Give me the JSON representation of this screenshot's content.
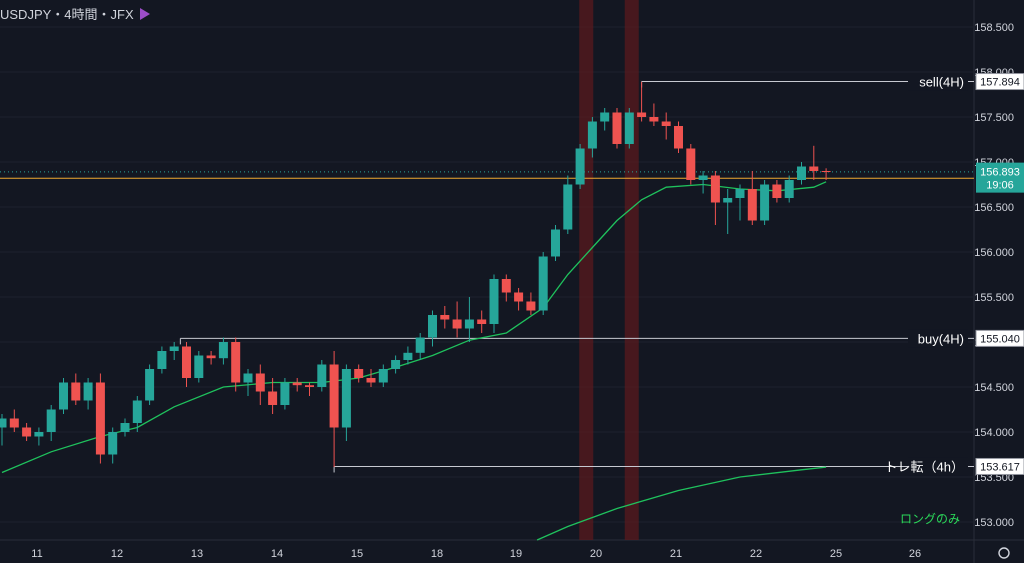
{
  "header": {
    "symbol": "USDJPY・4時間・JFX"
  },
  "colors": {
    "background": "#131722",
    "up": "#26a69a",
    "down": "#ef5350",
    "ma": "#1fc25d",
    "price_line": "#f0a830",
    "grid": "#1e222d",
    "text": "#d1d4dc",
    "label_green": "#2bd95a",
    "highlight": "#5a1a1e"
  },
  "chart_data": {
    "type": "candlestick",
    "ylim": [
      152.8,
      158.8
    ],
    "y_ticks": [
      "153.000",
      "153.500",
      "154.000",
      "154.500",
      "155.000",
      "155.500",
      "156.000",
      "156.500",
      "157.000",
      "157.500",
      "158.000",
      "158.500"
    ],
    "x_ticks": [
      "11",
      "12",
      "13",
      "14",
      "15",
      "18",
      "19",
      "20",
      "21",
      "22",
      "25",
      "26"
    ],
    "candles": [
      [
        154.05,
        154.2,
        153.85,
        154.15
      ],
      [
        154.15,
        154.25,
        154.0,
        154.05
      ],
      [
        154.05,
        154.1,
        153.9,
        153.95
      ],
      [
        153.95,
        154.05,
        153.85,
        154.0
      ],
      [
        154.0,
        154.3,
        153.9,
        154.25
      ],
      [
        154.25,
        154.6,
        154.2,
        154.55
      ],
      [
        154.55,
        154.65,
        154.3,
        154.35
      ],
      [
        154.35,
        154.6,
        154.25,
        154.55
      ],
      [
        154.55,
        154.65,
        153.65,
        153.75
      ],
      [
        153.75,
        154.05,
        153.65,
        154.0
      ],
      [
        154.0,
        154.15,
        153.95,
        154.1
      ],
      [
        154.1,
        154.4,
        154.0,
        154.35
      ],
      [
        154.35,
        154.75,
        154.3,
        154.7
      ],
      [
        154.7,
        154.95,
        154.65,
        154.9
      ],
      [
        154.9,
        155.0,
        154.8,
        154.95
      ],
      [
        154.95,
        155.0,
        154.5,
        154.6
      ],
      [
        154.6,
        154.9,
        154.55,
        154.85
      ],
      [
        154.85,
        154.9,
        154.75,
        154.82
      ],
      [
        154.82,
        155.05,
        154.75,
        155.0
      ],
      [
        155.0,
        155.05,
        154.45,
        154.55
      ],
      [
        154.55,
        154.7,
        154.4,
        154.65
      ],
      [
        154.65,
        154.75,
        154.3,
        154.45
      ],
      [
        154.45,
        154.6,
        154.2,
        154.3
      ],
      [
        154.3,
        154.6,
        154.25,
        154.55
      ],
      [
        154.55,
        154.6,
        154.45,
        154.52
      ],
      [
        154.52,
        154.55,
        154.4,
        154.5
      ],
      [
        154.5,
        154.8,
        154.45,
        154.75
      ],
      [
        154.75,
        154.9,
        153.61,
        154.05
      ],
      [
        154.05,
        154.75,
        153.9,
        154.7
      ],
      [
        154.7,
        154.75,
        154.55,
        154.6
      ],
      [
        154.6,
        154.7,
        154.5,
        154.55
      ],
      [
        154.55,
        154.75,
        154.5,
        154.7
      ],
      [
        154.7,
        154.85,
        154.65,
        154.8
      ],
      [
        154.8,
        154.95,
        154.75,
        154.88
      ],
      [
        154.88,
        155.1,
        154.8,
        155.05
      ],
      [
        155.05,
        155.35,
        154.95,
        155.3
      ],
      [
        155.3,
        155.4,
        155.15,
        155.25
      ],
      [
        155.25,
        155.45,
        155.05,
        155.15
      ],
      [
        155.15,
        155.5,
        155.0,
        155.25
      ],
      [
        155.25,
        155.35,
        155.1,
        155.2
      ],
      [
        155.2,
        155.75,
        155.1,
        155.7
      ],
      [
        155.7,
        155.75,
        155.45,
        155.55
      ],
      [
        155.55,
        155.6,
        155.35,
        155.45
      ],
      [
        155.45,
        155.55,
        155.3,
        155.35
      ],
      [
        155.35,
        156.0,
        155.3,
        155.95
      ],
      [
        155.95,
        156.3,
        155.9,
        156.25
      ],
      [
        156.25,
        156.85,
        156.2,
        156.75
      ],
      [
        156.75,
        157.2,
        156.7,
        157.15
      ],
      [
        157.15,
        157.5,
        157.05,
        157.45
      ],
      [
        157.45,
        157.6,
        157.35,
        157.55
      ],
      [
        157.55,
        157.6,
        157.15,
        157.2
      ],
      [
        157.2,
        157.6,
        157.15,
        157.55
      ],
      [
        157.55,
        157.89,
        157.45,
        157.5
      ],
      [
        157.5,
        157.65,
        157.4,
        157.45
      ],
      [
        157.45,
        157.55,
        157.25,
        157.4
      ],
      [
        157.4,
        157.45,
        157.1,
        157.15
      ],
      [
        157.15,
        157.2,
        156.75,
        156.8
      ],
      [
        156.8,
        156.9,
        156.65,
        156.85
      ],
      [
        156.85,
        156.9,
        156.3,
        156.55
      ],
      [
        156.55,
        156.7,
        156.2,
        156.6
      ],
      [
        156.6,
        156.75,
        156.35,
        156.7
      ],
      [
        156.7,
        156.9,
        156.3,
        156.35
      ],
      [
        156.35,
        156.8,
        156.3,
        156.75
      ],
      [
        156.75,
        156.8,
        156.55,
        156.6
      ],
      [
        156.6,
        156.85,
        156.55,
        156.8
      ],
      [
        156.8,
        157.0,
        156.75,
        156.95
      ],
      [
        156.95,
        157.18,
        156.8,
        156.9
      ],
      [
        156.9,
        156.93,
        156.8,
        156.89
      ]
    ],
    "ma_short": [
      [
        0,
        153.55
      ],
      [
        4,
        153.78
      ],
      [
        8,
        153.95
      ],
      [
        11,
        154.05
      ],
      [
        14,
        154.28
      ],
      [
        18,
        154.5
      ],
      [
        22,
        154.55
      ],
      [
        26,
        154.55
      ],
      [
        29,
        154.6
      ],
      [
        32,
        154.72
      ],
      [
        35,
        154.85
      ],
      [
        38,
        155.02
      ],
      [
        41,
        155.1
      ],
      [
        44,
        155.38
      ],
      [
        46,
        155.75
      ],
      [
        48,
        156.05
      ],
      [
        50,
        156.35
      ],
      [
        52,
        156.58
      ],
      [
        54,
        156.72
      ],
      [
        57,
        156.75
      ],
      [
        60,
        156.7
      ],
      [
        63,
        156.68
      ],
      [
        66,
        156.72
      ],
      [
        67,
        156.78
      ]
    ],
    "ma_long": [
      [
        43.5,
        152.8
      ],
      [
        46,
        152.95
      ],
      [
        50,
        153.15
      ],
      [
        55,
        153.35
      ],
      [
        60,
        153.5
      ],
      [
        65,
        153.58
      ],
      [
        67,
        153.61
      ]
    ],
    "highlights": [
      47.5,
      51.2
    ],
    "current_price": "156.893",
    "countdown": "19:06",
    "dotted_level": 156.89,
    "orange_level": 156.82,
    "levels": [
      {
        "label": "sell(4H)",
        "price": 157.894,
        "price_label": "157.894",
        "start": 52
      },
      {
        "label": "buy(4H)",
        "price": 155.04,
        "price_label": "155.040",
        "start": 14.5
      },
      {
        "label": "トレ転（4h）",
        "price": 153.617,
        "price_label": "153.617",
        "start": 27
      }
    ],
    "note": "ロングのみ"
  }
}
